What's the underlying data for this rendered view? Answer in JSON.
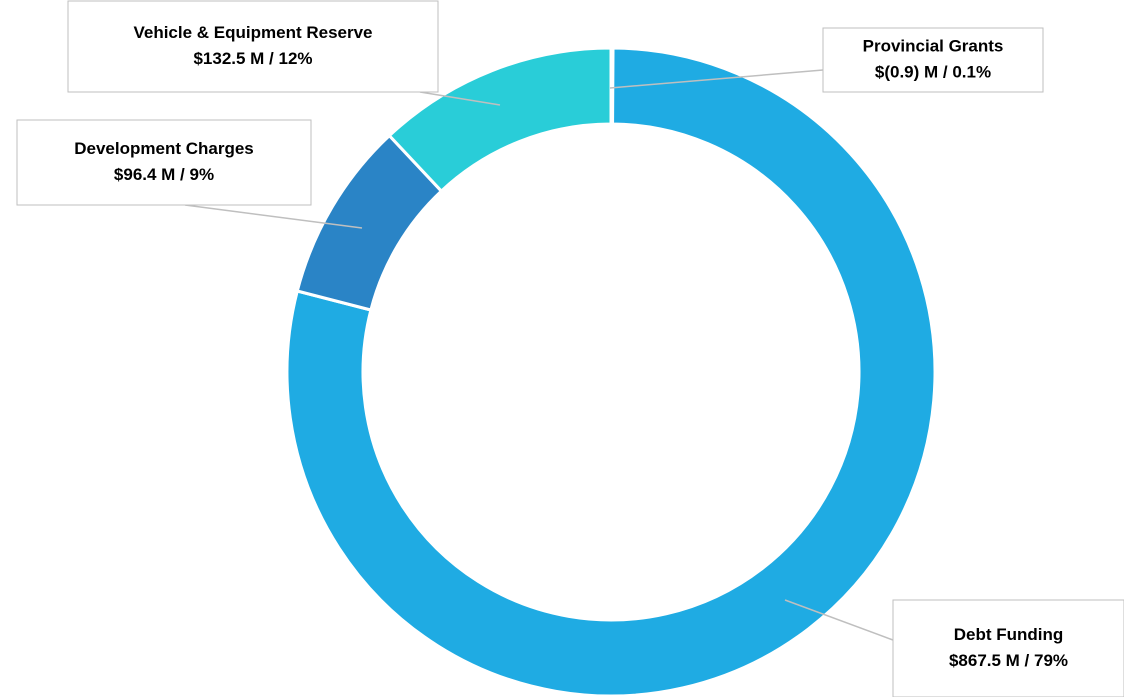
{
  "chart_data": {
    "type": "pie",
    "categories": [
      "Provincial Grants",
      "Debt Funding",
      "Development Charges",
      "Vehicle & Equipment Reserve"
    ],
    "values": [
      0.1,
      79,
      9,
      12
    ],
    "value_labels": [
      "$(0.9) M / 0.1%",
      "$867.5 M / 79%",
      "$96.4 M / 9%",
      "$132.5 M / 12%"
    ],
    "colors": [
      "#1fabe3",
      "#1fabe3",
      "#2a84c6",
      "#29cdd8"
    ]
  }
}
